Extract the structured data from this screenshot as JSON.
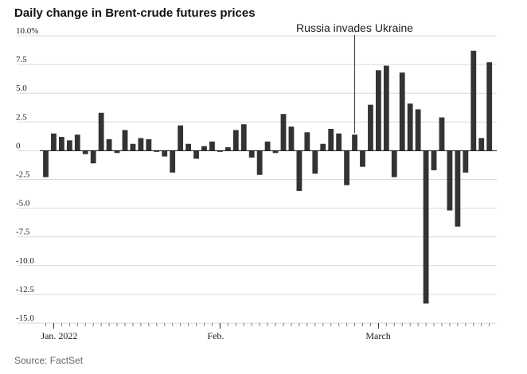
{
  "chart_data": {
    "type": "bar",
    "title": "Daily change in Brent-crude futures prices",
    "source": "Source: FactSet",
    "ylim": [
      -15,
      10
    ],
    "yticks": [
      10,
      7.5,
      5,
      2.5,
      0,
      -2.5,
      -5,
      -7.5,
      -10,
      -12.5,
      -15
    ],
    "ytick_labels": [
      "10.0%",
      "7.5",
      "5.0",
      "2.5",
      "0",
      "-2.5",
      "-5.0",
      "-7.5",
      "-10.0",
      "-12.5",
      "-15.0"
    ],
    "grid": true,
    "bar_color": "#333333",
    "xtick_labels": [
      {
        "label": "Jan. 2022",
        "index": 1
      },
      {
        "label": "Feb.",
        "index": 22
      },
      {
        "label": "March",
        "index": 42
      }
    ],
    "annotation": {
      "text": "Russia invades Ukraine",
      "index": 39
    },
    "values": [
      -2.3,
      1.5,
      1.2,
      0.9,
      1.4,
      -0.3,
      -1.1,
      3.3,
      1.0,
      -0.2,
      1.8,
      0.6,
      1.1,
      1.0,
      -0.1,
      -0.5,
      -1.9,
      2.2,
      0.6,
      -0.7,
      0.4,
      0.8,
      -0.1,
      0.3,
      1.8,
      2.3,
      -0.6,
      -2.1,
      0.8,
      -0.2,
      3.2,
      2.1,
      -3.5,
      1.6,
      -2.0,
      0.6,
      1.9,
      1.5,
      -3.0,
      1.4,
      -1.4,
      4.0,
      7.0,
      7.4,
      -2.3,
      6.8,
      4.1,
      3.6,
      -13.3,
      -1.7,
      2.9,
      -5.2,
      -6.6,
      -1.9,
      8.7,
      1.1,
      7.7
    ]
  }
}
